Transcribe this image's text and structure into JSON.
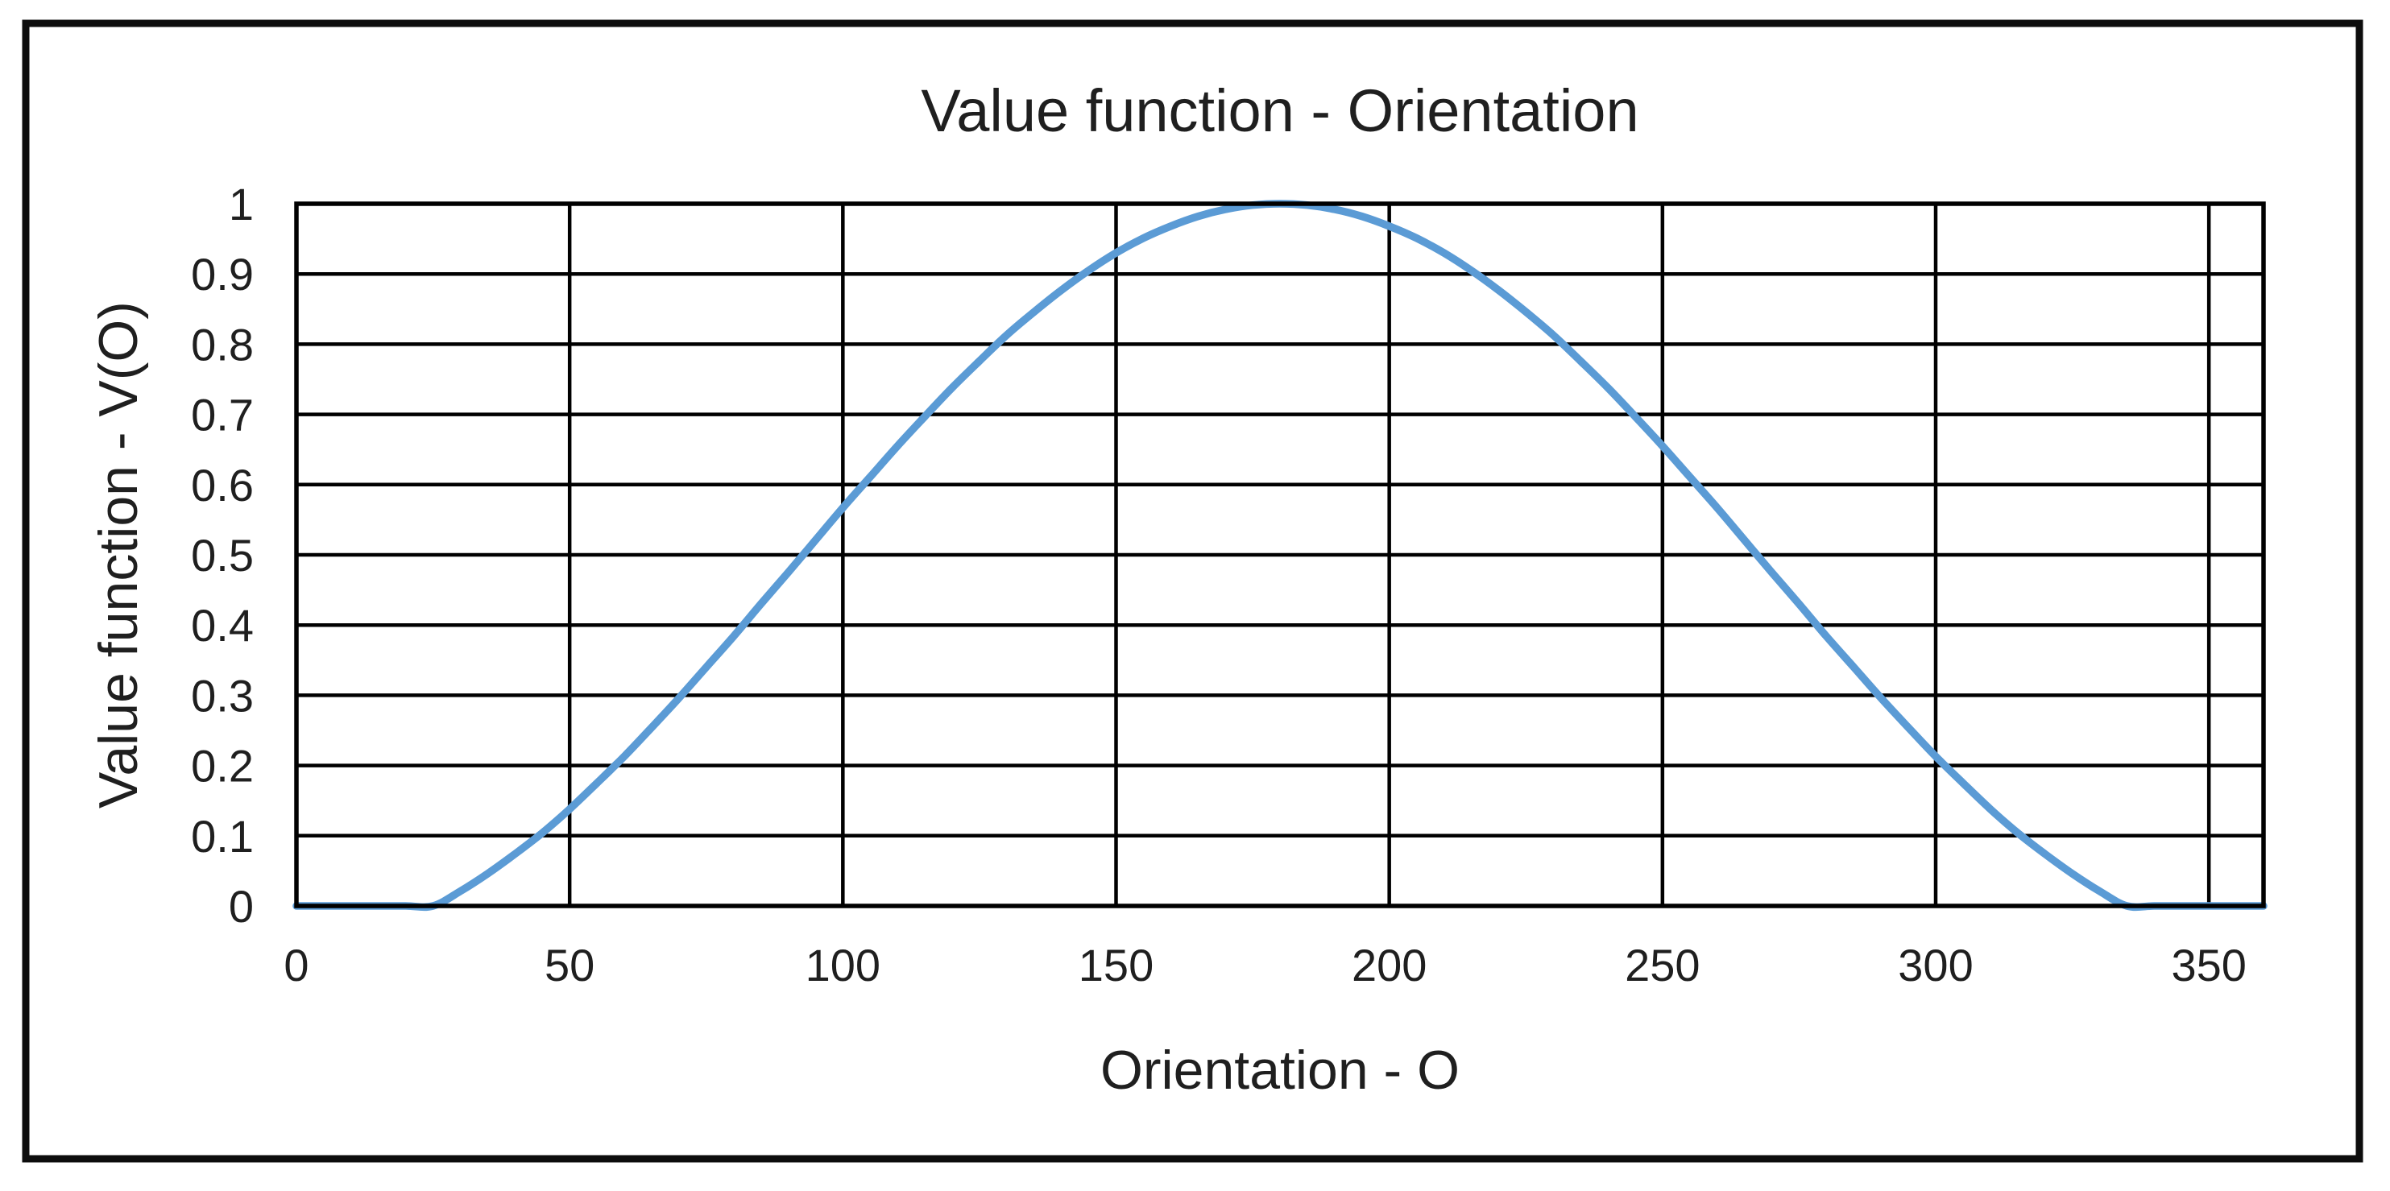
{
  "chart_data": {
    "type": "line",
    "title": "Value function - Orientation",
    "xlabel": "Orientation - O",
    "ylabel": "Value function - V(O)",
    "xlim": [
      0,
      360
    ],
    "ylim": [
      0,
      1
    ],
    "x_ticks": [
      0,
      50,
      100,
      150,
      200,
      250,
      300,
      350
    ],
    "x_tick_labels": [
      "0",
      "50",
      "100",
      "150",
      "200",
      "250",
      "300",
      "350"
    ],
    "y_ticks": [
      0,
      0.1,
      0.2,
      0.3,
      0.4,
      0.5,
      0.6,
      0.7,
      0.8,
      0.9,
      1
    ],
    "y_tick_labels": [
      "0",
      "0.1",
      "0.2",
      "0.3",
      "0.4",
      "0.5",
      "0.6",
      "0.7",
      "0.8",
      "0.9",
      "1"
    ],
    "grid": "both",
    "legend": "none",
    "grid_color": "#000000",
    "frame_color": "#0d0d0d",
    "text_color": "#1f1f1f",
    "series": [
      {
        "name": "V(O)",
        "color": "#5B9BD5",
        "x": [
          0,
          5,
          10,
          15,
          20,
          25,
          30,
          35,
          40,
          45,
          50,
          55,
          60,
          65,
          70,
          75,
          80,
          85,
          90,
          95,
          100,
          105,
          110,
          115,
          120,
          125,
          130,
          135,
          140,
          145,
          150,
          155,
          160,
          165,
          170,
          175,
          180,
          185,
          190,
          195,
          200,
          205,
          210,
          215,
          220,
          225,
          230,
          235,
          240,
          245,
          250,
          255,
          260,
          265,
          270,
          275,
          280,
          285,
          290,
          295,
          300,
          305,
          310,
          315,
          320,
          325,
          330,
          335,
          340,
          345,
          350,
          355,
          360
        ],
        "y": [
          0,
          0,
          0,
          0,
          0,
          0,
          0.021,
          0.046,
          0.074,
          0.104,
          0.138,
          0.175,
          0.213,
          0.254,
          0.296,
          0.34,
          0.384,
          0.43,
          0.475,
          0.521,
          0.567,
          0.611,
          0.655,
          0.697,
          0.738,
          0.776,
          0.813,
          0.846,
          0.877,
          0.905,
          0.93,
          0.951,
          0.968,
          0.982,
          0.992,
          0.998,
          1,
          0.998,
          0.992,
          0.982,
          0.968,
          0.951,
          0.93,
          0.905,
          0.877,
          0.846,
          0.813,
          0.776,
          0.738,
          0.697,
          0.655,
          0.611,
          0.567,
          0.521,
          0.475,
          0.43,
          0.384,
          0.34,
          0.296,
          0.254,
          0.213,
          0.175,
          0.138,
          0.104,
          0.074,
          0.046,
          0.021,
          0,
          0,
          0,
          0,
          0,
          0
        ]
      }
    ]
  }
}
